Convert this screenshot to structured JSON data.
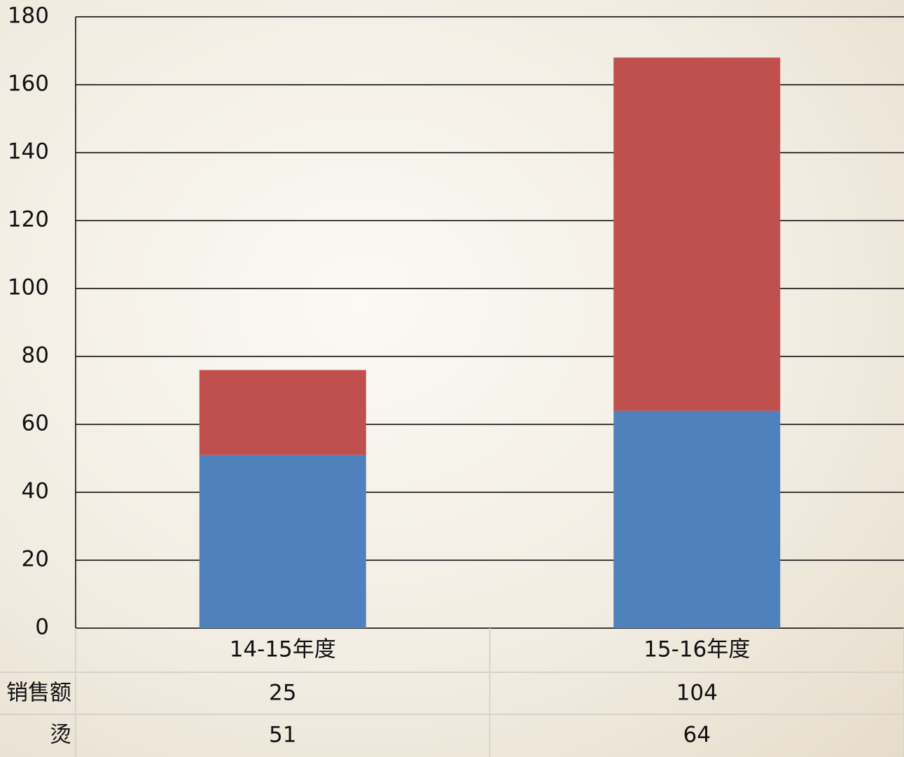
{
  "chart_data": {
    "type": "stacked_bar",
    "categories": [
      "14-15年度",
      "15-16年度"
    ],
    "series": [
      {
        "name": "销售额",
        "color": "#c0504d",
        "values": [
          25,
          104
        ]
      },
      {
        "name": "烫",
        "color": "#4f81bd",
        "values": [
          51,
          64
        ]
      }
    ],
    "ylim": [
      0,
      180
    ],
    "yticks": [
      0,
      20,
      40,
      60,
      80,
      100,
      120,
      140,
      160,
      180
    ],
    "grid": true,
    "data_table": true
  }
}
